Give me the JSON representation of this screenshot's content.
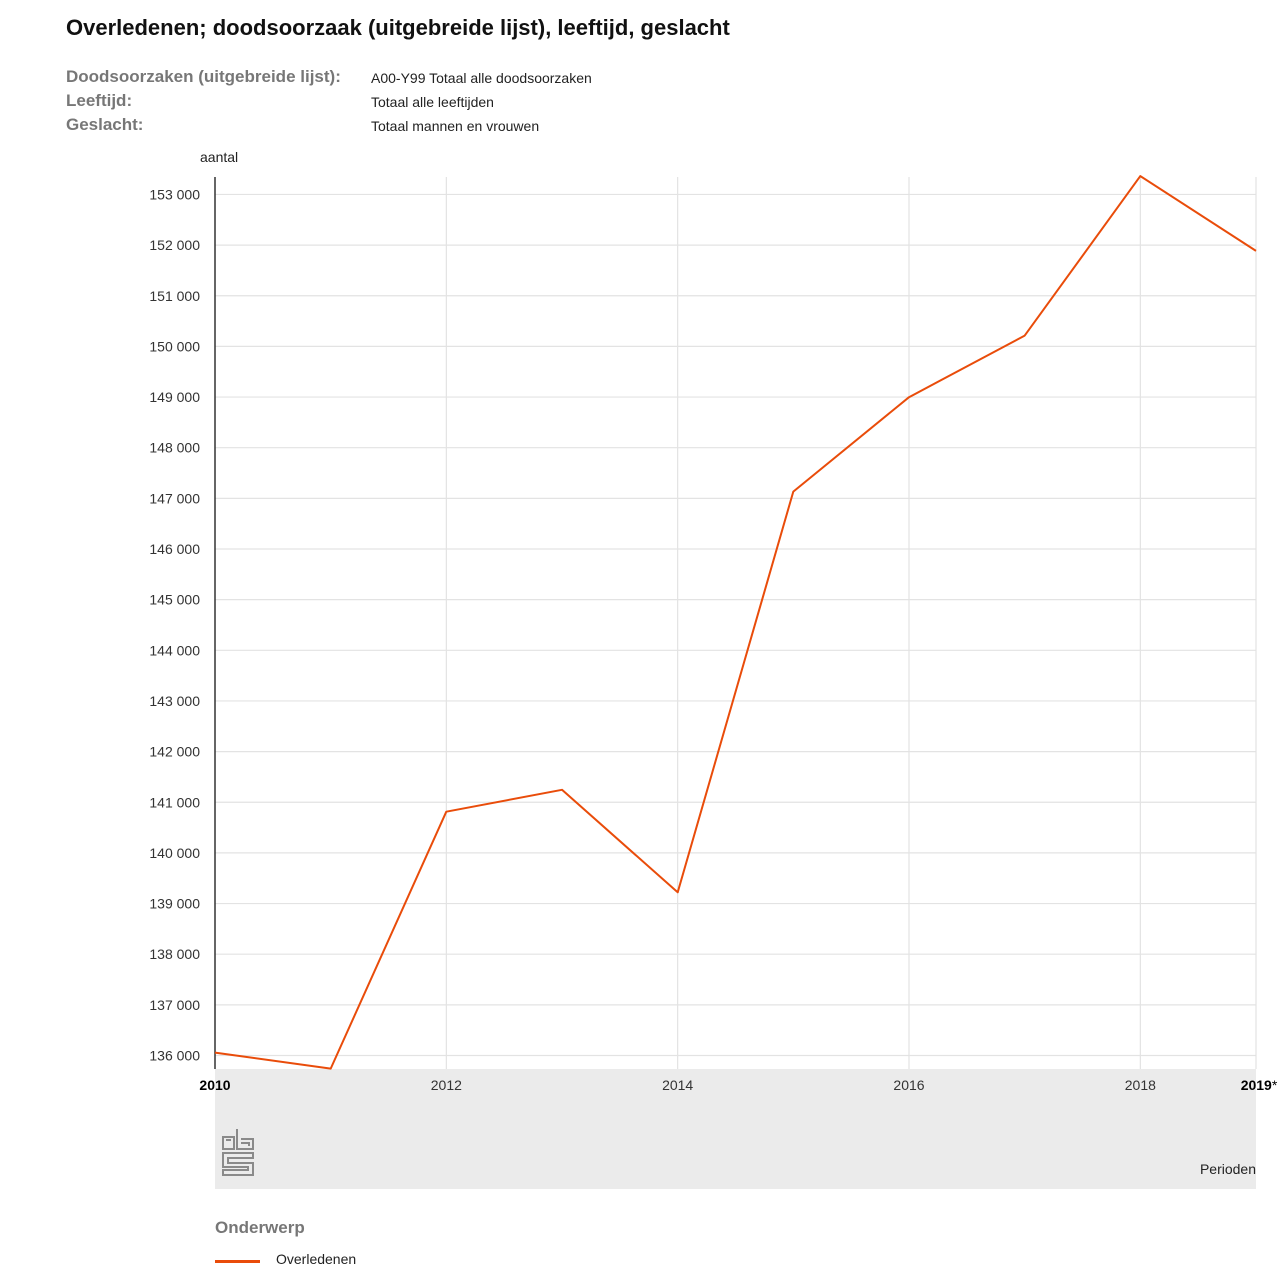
{
  "header": {
    "title": "Overledenen; doodsoorzaak (uitgebreide lijst), leeftijd, geslacht"
  },
  "filters": [
    {
      "key": "Doodsoorzaken (uitgebreide lijst):",
      "value": "A00-Y99 Totaal alle doodsoorzaken"
    },
    {
      "key": "Leeftijd:",
      "value": "Totaal alle leeftijden"
    },
    {
      "key": "Geslacht:",
      "value": "Totaal mannen en vrouwen"
    }
  ],
  "legend": {
    "title": "Onderwerp",
    "items": [
      {
        "label": "Overledenen",
        "color": "#e94c0a"
      }
    ]
  },
  "chart_data": {
    "type": "line",
    "ylabel": "aantal",
    "xlabel": "Perioden",
    "x": [
      "2010",
      "2011",
      "2012",
      "2013",
      "2014",
      "2015",
      "2016",
      "2017",
      "2018",
      "2019*"
    ],
    "x_tick_labels": [
      "2010",
      "2012",
      "2014",
      "2016",
      "2018",
      "2019*"
    ],
    "y_tick_labels": [
      "136 000",
      "137 000",
      "138 000",
      "139 000",
      "140 000",
      "141 000",
      "142 000",
      "143 000",
      "144 000",
      "145 000",
      "146 000",
      "147 000",
      "148 000",
      "149 000",
      "150 000",
      "151 000",
      "152 000",
      "153 000"
    ],
    "series": [
      {
        "name": "Overledenen",
        "color": "#e94c0a",
        "values": [
          136058,
          135741,
          140813,
          141245,
          139223,
          147134,
          148997,
          150214,
          153363,
          151885
        ]
      }
    ],
    "ylim": [
      135700,
      153400
    ],
    "grid": true
  }
}
